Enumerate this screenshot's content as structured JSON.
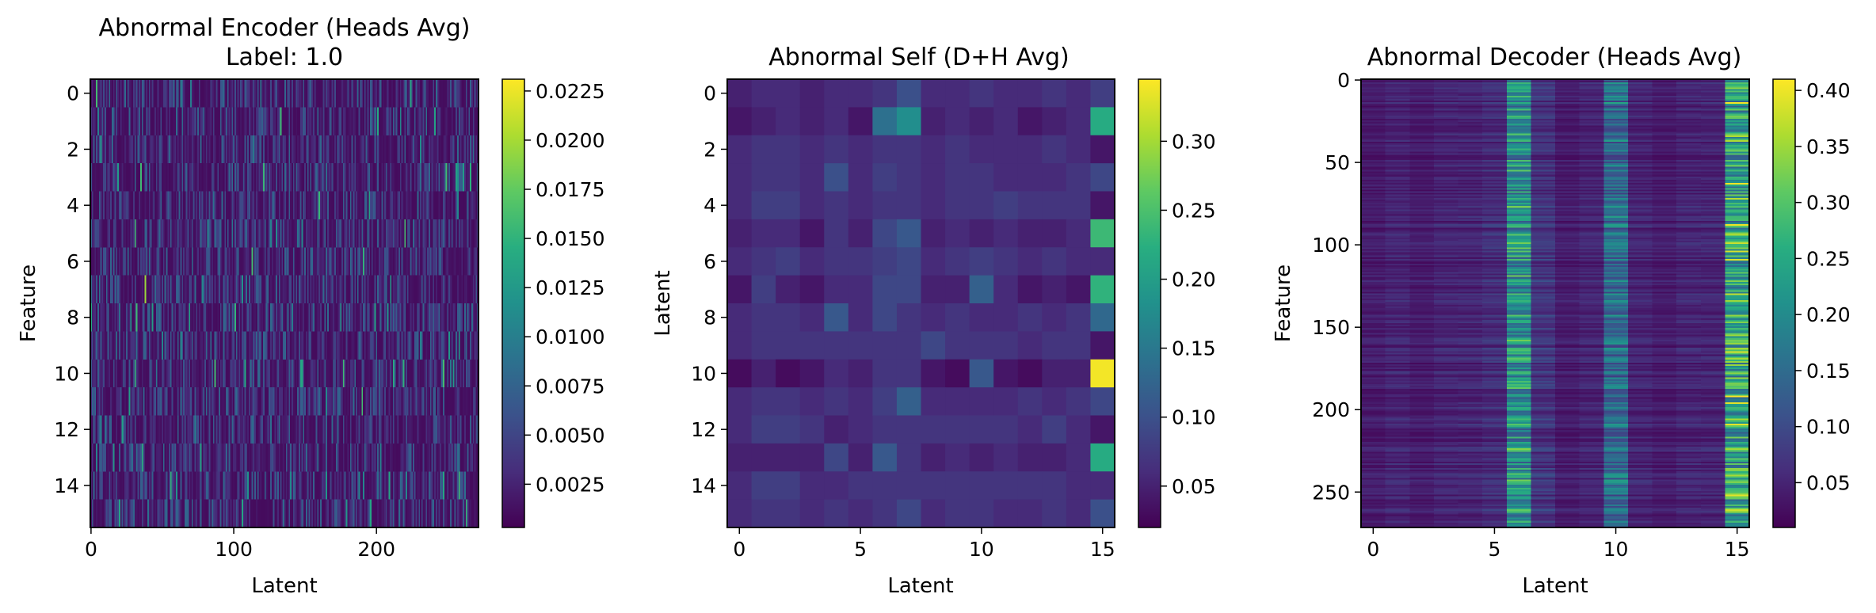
{
  "chart_data": [
    {
      "type": "heatmap",
      "title": "Abnormal Encoder (Heads Avg)",
      "subtitle": "Label: 1.0",
      "xlabel": "Latent",
      "ylabel": "Feature",
      "rows": 16,
      "cols": 272,
      "xlim": [
        -0.5,
        271.5
      ],
      "ylim": [
        15.5,
        -0.5
      ],
      "xticks": [
        "0",
        "100",
        "200"
      ],
      "yticks": [
        "0",
        "2",
        "4",
        "6",
        "8",
        "10",
        "12",
        "14"
      ],
      "colorbar": {
        "min": 0.0003,
        "max": 0.0231,
        "ticks": [
          "0.0025",
          "0.0050",
          "0.0075",
          "0.0100",
          "0.0125",
          "0.0150",
          "0.0175",
          "0.0200",
          "0.0225"
        ]
      },
      "pattern": "dense fine-grained noise with scattered bright streaks",
      "colormap": "viridis"
    },
    {
      "type": "heatmap",
      "title": "Abnormal Self (D+H Avg)",
      "xlabel": "Latent",
      "ylabel": "Latent",
      "rows": 16,
      "cols": 16,
      "xlim": [
        -0.5,
        15.5
      ],
      "ylim": [
        15.5,
        -0.5
      ],
      "xticks": [
        "0",
        "5",
        "10",
        "15"
      ],
      "yticks": [
        "0",
        "2",
        "4",
        "6",
        "8",
        "10",
        "12",
        "14"
      ],
      "colorbar": {
        "min": 0.02,
        "max": 0.345,
        "ticks": [
          "0.05",
          "0.10",
          "0.15",
          "0.20",
          "0.25",
          "0.30"
        ]
      },
      "values": [
        [
          0.05,
          0.06,
          0.06,
          0.05,
          0.06,
          0.06,
          0.07,
          0.1,
          0.06,
          0.06,
          0.07,
          0.06,
          0.06,
          0.07,
          0.06,
          0.08
        ],
        [
          0.04,
          0.05,
          0.06,
          0.05,
          0.06,
          0.04,
          0.14,
          0.18,
          0.05,
          0.06,
          0.05,
          0.06,
          0.04,
          0.05,
          0.06,
          0.22
        ],
        [
          0.06,
          0.07,
          0.07,
          0.06,
          0.07,
          0.06,
          0.07,
          0.07,
          0.06,
          0.07,
          0.06,
          0.06,
          0.06,
          0.07,
          0.06,
          0.04
        ],
        [
          0.06,
          0.07,
          0.07,
          0.06,
          0.1,
          0.06,
          0.08,
          0.07,
          0.06,
          0.07,
          0.07,
          0.06,
          0.06,
          0.06,
          0.07,
          0.09
        ],
        [
          0.06,
          0.08,
          0.08,
          0.06,
          0.07,
          0.06,
          0.07,
          0.07,
          0.06,
          0.07,
          0.07,
          0.08,
          0.07,
          0.07,
          0.07,
          0.04
        ],
        [
          0.05,
          0.06,
          0.06,
          0.04,
          0.07,
          0.05,
          0.09,
          0.11,
          0.05,
          0.06,
          0.05,
          0.06,
          0.05,
          0.05,
          0.06,
          0.24
        ],
        [
          0.06,
          0.07,
          0.08,
          0.06,
          0.07,
          0.07,
          0.08,
          0.09,
          0.06,
          0.07,
          0.08,
          0.07,
          0.06,
          0.07,
          0.06,
          0.06
        ],
        [
          0.04,
          0.08,
          0.05,
          0.04,
          0.06,
          0.06,
          0.09,
          0.09,
          0.05,
          0.05,
          0.12,
          0.06,
          0.04,
          0.05,
          0.04,
          0.23
        ],
        [
          0.06,
          0.07,
          0.07,
          0.06,
          0.11,
          0.06,
          0.09,
          0.07,
          0.06,
          0.07,
          0.06,
          0.06,
          0.07,
          0.06,
          0.07,
          0.13
        ],
        [
          0.06,
          0.07,
          0.07,
          0.07,
          0.07,
          0.07,
          0.07,
          0.07,
          0.09,
          0.07,
          0.07,
          0.07,
          0.06,
          0.07,
          0.07,
          0.04
        ],
        [
          0.03,
          0.05,
          0.03,
          0.04,
          0.06,
          0.05,
          0.07,
          0.07,
          0.04,
          0.03,
          0.11,
          0.04,
          0.03,
          0.05,
          0.05,
          0.34
        ],
        [
          0.06,
          0.07,
          0.07,
          0.06,
          0.07,
          0.06,
          0.08,
          0.12,
          0.06,
          0.06,
          0.06,
          0.06,
          0.07,
          0.06,
          0.07,
          0.09
        ],
        [
          0.06,
          0.08,
          0.08,
          0.07,
          0.05,
          0.06,
          0.07,
          0.07,
          0.07,
          0.07,
          0.07,
          0.07,
          0.06,
          0.08,
          0.06,
          0.04
        ],
        [
          0.05,
          0.05,
          0.05,
          0.05,
          0.09,
          0.05,
          0.11,
          0.07,
          0.05,
          0.06,
          0.05,
          0.06,
          0.05,
          0.05,
          0.06,
          0.22
        ],
        [
          0.06,
          0.08,
          0.08,
          0.06,
          0.06,
          0.07,
          0.07,
          0.07,
          0.07,
          0.07,
          0.07,
          0.07,
          0.07,
          0.07,
          0.06,
          0.06
        ],
        [
          0.06,
          0.07,
          0.07,
          0.06,
          0.07,
          0.06,
          0.07,
          0.09,
          0.06,
          0.07,
          0.07,
          0.06,
          0.06,
          0.07,
          0.06,
          0.1
        ]
      ],
      "colormap": "viridis"
    },
    {
      "type": "heatmap",
      "title": "Abnormal Decoder (Heads Avg)",
      "xlabel": "Latent",
      "ylabel": "Feature",
      "rows": 272,
      "cols": 16,
      "xlim": [
        -0.5,
        15.5
      ],
      "ylim": [
        271.5,
        -0.5
      ],
      "xticks": [
        "0",
        "5",
        "10",
        "15"
      ],
      "yticks": [
        "0",
        "50",
        "100",
        "150",
        "200",
        "250"
      ],
      "colorbar": {
        "min": 0.01,
        "max": 0.41,
        "ticks": [
          "0.05",
          "0.10",
          "0.15",
          "0.20",
          "0.25",
          "0.30",
          "0.35",
          "0.40"
        ]
      },
      "column_means": [
        0.04,
        0.05,
        0.04,
        0.05,
        0.05,
        0.06,
        0.21,
        0.07,
        0.04,
        0.05,
        0.15,
        0.05,
        0.04,
        0.05,
        0.05,
        0.24
      ],
      "colormap": "viridis"
    }
  ]
}
